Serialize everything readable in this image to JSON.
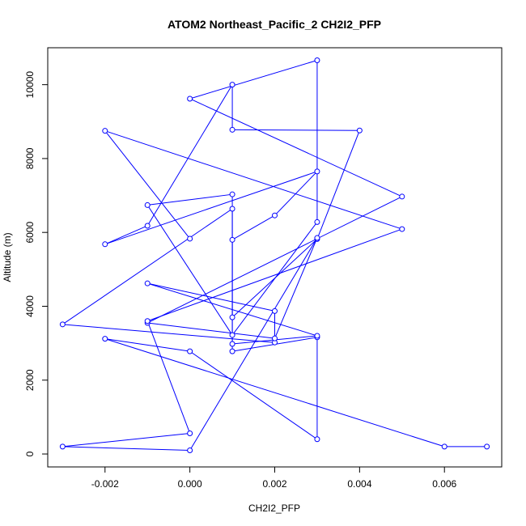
{
  "chart_data": {
    "type": "line",
    "title": "ATOM2 Northeast_Pacific_2 CH2I2_PFP",
    "xlabel": "CH2I2_PFP",
    "ylabel": "Altitude (m)",
    "xlim": [
      -0.00335,
      0.00735
    ],
    "ylim": [
      -350,
      11000
    ],
    "xticks": [
      -0.002,
      0.0,
      0.002,
      0.004,
      0.006
    ],
    "xtick_labels": [
      "-0.002",
      "0.000",
      "0.002",
      "0.004",
      "0.006"
    ],
    "yticks": [
      0,
      2000,
      4000,
      6000,
      8000,
      10000
    ],
    "ytick_labels": [
      "0",
      "2000",
      "4000",
      "6000",
      "8000",
      "10000"
    ],
    "grid": false,
    "legend": "none",
    "markers": "open-circle",
    "color": "#0000ff",
    "series": [
      {
        "x": [
          0.007,
          0.006,
          -0.002,
          0.0,
          0.003,
          0.003,
          0.001,
          0.001,
          0.002,
          0.003,
          -0.002,
          -0.001,
          0.001,
          0.001,
          0.004,
          0.003,
          0.001,
          0.001,
          -0.003,
          0.002,
          0.002,
          -0.001,
          0.003,
          0.001,
          0.001,
          -0.001,
          0.001,
          0.003,
          0.003,
          0.0,
          0.005,
          -0.001,
          0.002,
          0.003,
          0.0,
          -0.003,
          0.0,
          -0.001,
          0.005,
          -0.002,
          0.0
        ],
        "y": [
          200,
          200,
          3120,
          2780,
          400,
          3160,
          2780,
          5800,
          6460,
          7650,
          5680,
          6180,
          10000,
          8780,
          8760,
          5820,
          3700,
          6640,
          3510,
          3020,
          3870,
          4620,
          3200,
          2980,
          7030,
          6740,
          3220,
          6280,
          10660,
          9620,
          6970,
          3550,
          3130,
          5850,
          100,
          200,
          560,
          3600,
          6090,
          8750,
          5830
        ]
      }
    ]
  }
}
